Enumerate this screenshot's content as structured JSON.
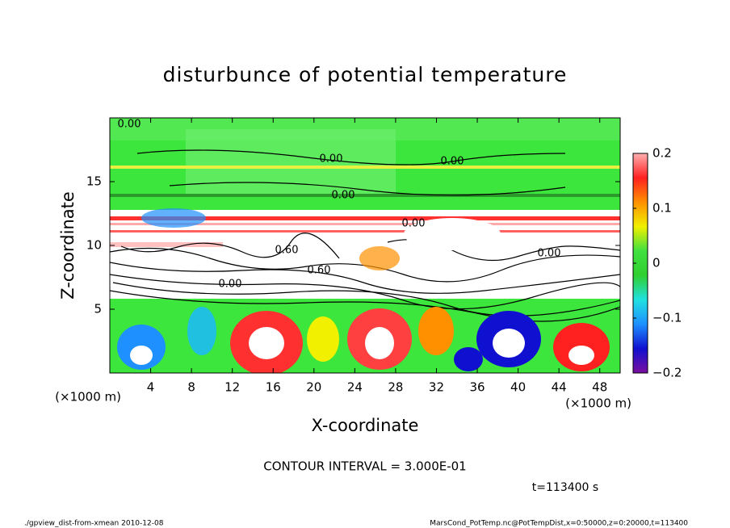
{
  "chart_data": {
    "type": "contour",
    "title": "disturbunce of potential temperature",
    "x_label": "X-coordinate",
    "y_label": "Z-coordinate",
    "x_unit": "(×1000 m)",
    "y_unit": "(×1000 m)",
    "xlim": [
      0,
      50
    ],
    "xticks": [
      4,
      8,
      12,
      16,
      20,
      24,
      28,
      32,
      36,
      40,
      44,
      48
    ],
    "ylim": [
      0,
      20
    ],
    "yticks": [
      5,
      10,
      15
    ],
    "colorbar": {
      "lim": [
        -0.2,
        0.2
      ],
      "ticks": [
        {
          "value": -0.2,
          "label": "−0.2"
        },
        {
          "value": -0.1,
          "label": "−0.1"
        },
        0,
        0.1,
        0.2
      ],
      "colormap": [
        "#7a0fa0",
        "#1010d0",
        "#1e90ff",
        "#20e0e0",
        "#30d030",
        "#40e040",
        "#f0f000",
        "#ff9000",
        "#ff2020",
        "#ffb0b0"
      ]
    },
    "contour_labels": [
      "0.00",
      "0.00",
      "0.00",
      "0.00",
      "0.60",
      "0.60",
      "0.00",
      "0.00",
      "0.00"
    ],
    "contour_interval": "CONTOUR INTERVAL = 3.000E-01",
    "time": "t=113400 s",
    "footer_left": "./gpview_dist-from-xmean  2010-12-08",
    "footer_right": "MarsCond_PotTemp.nc@PotTempDist,x=0:50000,z=0:20000,t=113400"
  }
}
